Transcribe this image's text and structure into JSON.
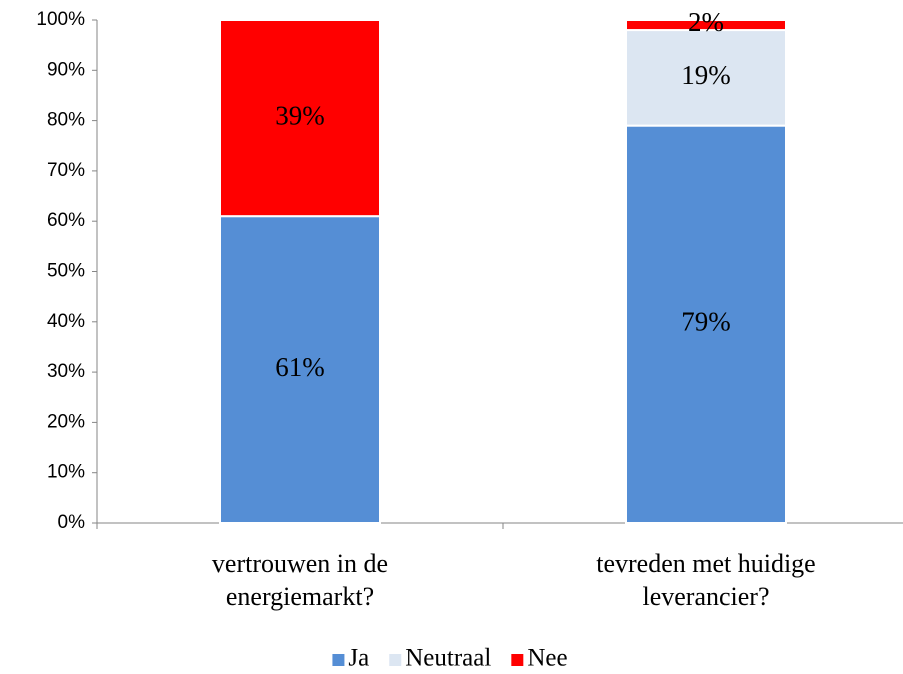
{
  "chart_data": {
    "type": "stacked_bar",
    "categories": [
      "vertrouwen in de energiemarkt?",
      "tevreden met huidige leverancier?"
    ],
    "series": [
      {
        "name": "Ja",
        "color": "#558ed5",
        "values": [
          61,
          79
        ],
        "value_labels": [
          "61%",
          "79%"
        ]
      },
      {
        "name": "Neutraal",
        "color": "#dce6f2",
        "values": [
          0,
          19
        ],
        "value_labels": [
          null,
          "19%"
        ]
      },
      {
        "name": "Nee",
        "color": "#ff0000",
        "values": [
          39,
          2
        ],
        "value_labels": [
          "39%",
          "2%"
        ]
      }
    ],
    "ylim": [
      0,
      100
    ],
    "yticks": [
      {
        "value": 0,
        "label": "0%"
      },
      {
        "value": 10,
        "label": "10%"
      },
      {
        "value": 20,
        "label": "20%"
      },
      {
        "value": 30,
        "label": "30%"
      },
      {
        "value": 40,
        "label": "40%"
      },
      {
        "value": 50,
        "label": "50%"
      },
      {
        "value": 60,
        "label": "60%"
      },
      {
        "value": 70,
        "label": "70%"
      },
      {
        "value": 80,
        "label": "80%"
      },
      {
        "value": 90,
        "label": "90%"
      },
      {
        "value": 100,
        "label": "100%"
      }
    ],
    "legend": "bottom"
  }
}
